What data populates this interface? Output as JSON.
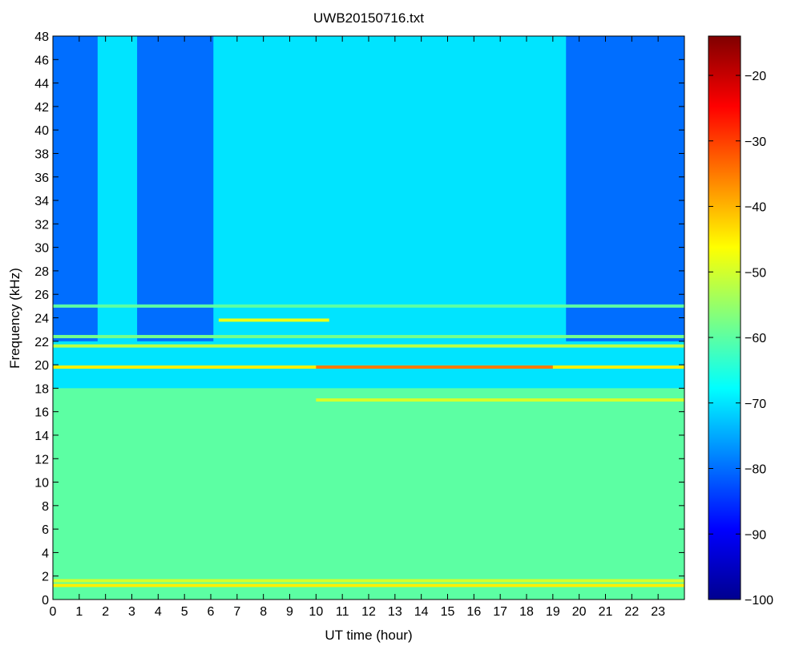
{
  "chart_data": {
    "type": "heatmap",
    "title": "UWB20150716.txt",
    "xlabel": "UT time (hour)",
    "ylabel": "Frequency (kHz)",
    "xlim": [
      0,
      24
    ],
    "ylim": [
      0,
      48
    ],
    "x_ticks": [
      "0",
      "1",
      "2",
      "3",
      "4",
      "5",
      "6",
      "7",
      "8",
      "9",
      "10",
      "11",
      "12",
      "13",
      "14",
      "15",
      "16",
      "17",
      "18",
      "19",
      "20",
      "21",
      "22",
      "23"
    ],
    "y_ticks": [
      "0",
      "2",
      "4",
      "6",
      "8",
      "10",
      "12",
      "14",
      "16",
      "18",
      "20",
      "22",
      "24",
      "26",
      "28",
      "30",
      "32",
      "34",
      "36",
      "38",
      "40",
      "42",
      "44",
      "46",
      "48"
    ],
    "colorbar": {
      "colormap": "jet",
      "clim": [
        -100,
        -14
      ],
      "ticks": [
        "-100",
        "-90",
        "-80",
        "-70",
        "-60",
        "-50",
        "-40",
        "-30",
        "-20"
      ]
    },
    "background_dB": -70,
    "lower_band": {
      "freq_range_kHz": [
        0,
        18
      ],
      "level_dB": -60
    },
    "quiet_periods": [
      {
        "time_range_hour": [
          0,
          1.7
        ],
        "freq_above_kHz": 22,
        "level_dB": -80
      },
      {
        "time_range_hour": [
          3.2,
          6.1
        ],
        "freq_above_kHz": 22,
        "level_dB": -80
      },
      {
        "time_range_hour": [
          19.5,
          24
        ],
        "freq_above_kHz": 22,
        "level_dB": -80
      }
    ],
    "emission_lines": [
      {
        "freq_kHz": 1.2,
        "time_range_hour": [
          0,
          24
        ],
        "level_dB": -45
      },
      {
        "freq_kHz": 1.6,
        "time_range_hour": [
          0,
          24
        ],
        "level_dB": -50
      },
      {
        "freq_kHz": 17.0,
        "time_range_hour": [
          10,
          24
        ],
        "level_dB": -50
      },
      {
        "freq_kHz": 19.8,
        "time_range_hour": [
          0,
          24
        ],
        "level_dB": -45
      },
      {
        "freq_kHz": 19.8,
        "time_range_hour": [
          10,
          19
        ],
        "level_dB": -35
      },
      {
        "freq_kHz": 21.6,
        "time_range_hour": [
          0,
          24
        ],
        "level_dB": -52
      },
      {
        "freq_kHz": 22.4,
        "time_range_hour": [
          0,
          24
        ],
        "level_dB": -58
      },
      {
        "freq_kHz": 23.8,
        "time_range_hour": [
          6.3,
          10.5
        ],
        "level_dB": -48
      },
      {
        "freq_kHz": 25.0,
        "time_range_hour": [
          0,
          24
        ],
        "level_dB": -60
      }
    ]
  }
}
